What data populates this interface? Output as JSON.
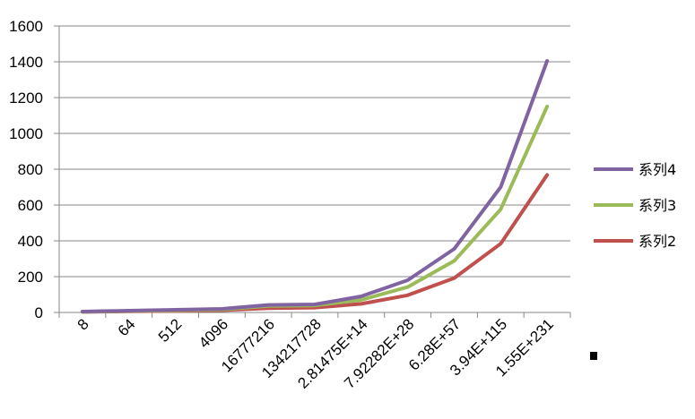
{
  "chart_data": {
    "type": "line",
    "title": "",
    "xlabel": "",
    "ylabel": "",
    "categories": [
      "8",
      "64",
      "512",
      "4096",
      "16777216",
      "134217728",
      "2.81475E+14",
      "7.92282E+28",
      "6.28E+57",
      "3.94E+115",
      "1.55E+231"
    ],
    "ylim": [
      0,
      1600
    ],
    "yticks": [
      0,
      200,
      400,
      600,
      800,
      1000,
      1200,
      1400,
      1600
    ],
    "grid": true,
    "legend_position": "right",
    "series": [
      {
        "name": "系列2",
        "color": "#c0504d",
        "values": [
          3,
          6,
          9,
          12,
          24,
          27,
          48,
          96,
          192,
          384,
          768
        ]
      },
      {
        "name": "系列3",
        "color": "#9bbb59",
        "values": [
          4,
          8,
          12,
          16,
          36,
          39,
          70,
          142,
          288,
          576,
          1150
        ]
      },
      {
        "name": "系列4",
        "color": "#8064a2",
        "values": [
          5,
          10,
          15,
          20,
          42,
          45,
          90,
          180,
          355,
          700,
          1405
        ]
      }
    ],
    "legend_order": [
      "系列4",
      "系列3",
      "系列2"
    ]
  }
}
